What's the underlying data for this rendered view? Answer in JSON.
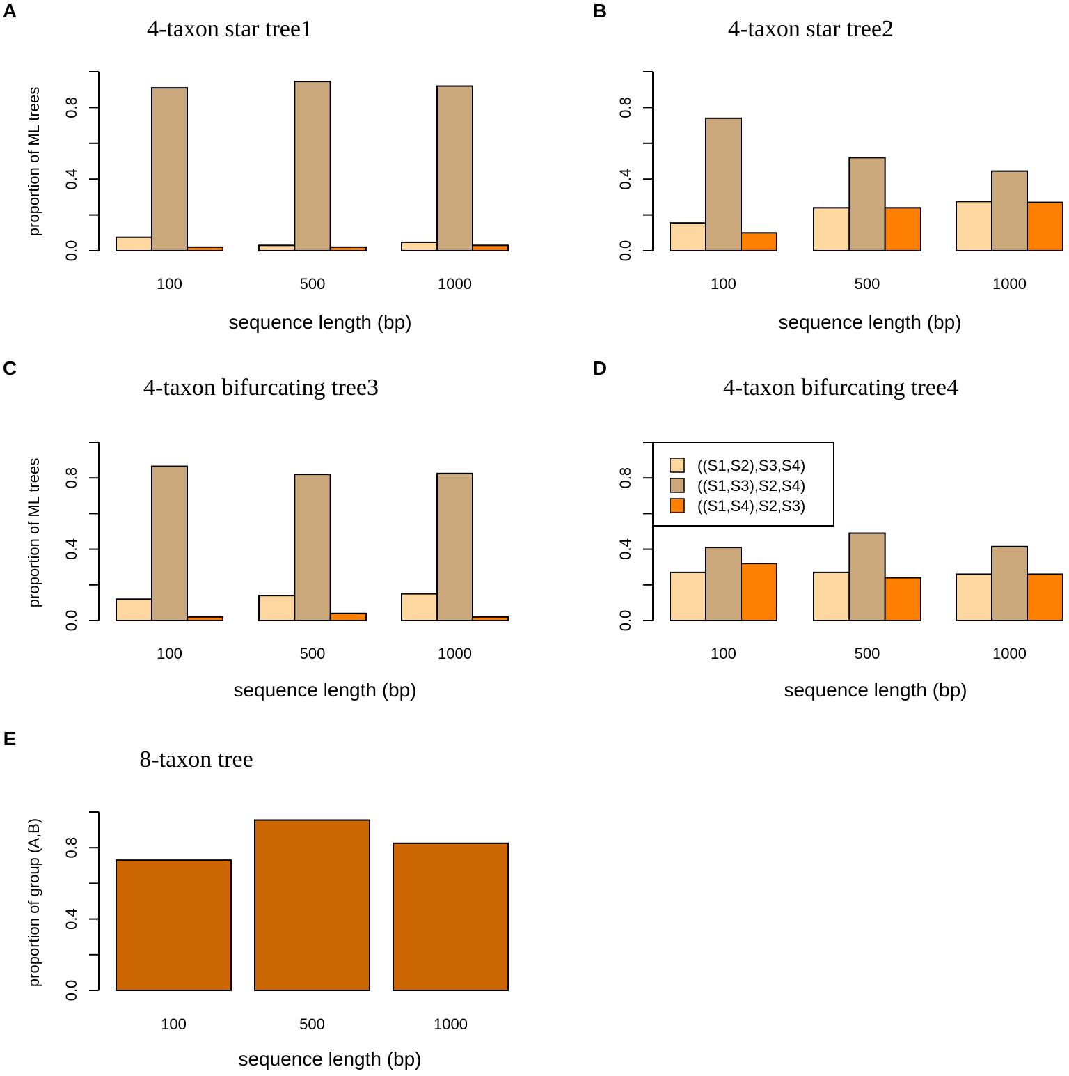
{
  "colors": {
    "tree1": "#FED6A0",
    "tree2": "#CBA87B",
    "tree3": "#FF7F00",
    "group": "#CC6600",
    "stroke": "#000000"
  },
  "legend": {
    "entries": [
      "((S1,S2),S3,S4)",
      "((S1,S3),S2,S4)",
      "((S1,S4),S2,S3)"
    ]
  },
  "chart_data": [
    {
      "panel": "A",
      "type": "bar",
      "title": "4-taxon star tree1",
      "xlabel": "sequence length (bp)",
      "ylabel": "proportion of ML trees",
      "categories": [
        "100",
        "500",
        "1000"
      ],
      "yticks": [
        "0.0",
        "0.4",
        "0.8"
      ],
      "ylim": [
        0,
        1
      ],
      "series": [
        {
          "name": "((S1,S2),S3,S4)",
          "values": [
            0.075,
            0.03,
            0.047
          ]
        },
        {
          "name": "((S1,S3),S2,S4)",
          "values": [
            0.91,
            0.945,
            0.92
          ]
        },
        {
          "name": "((S1,S4),S2,S3)",
          "values": [
            0.02,
            0.02,
            0.03
          ]
        }
      ]
    },
    {
      "panel": "B",
      "type": "bar",
      "title": "4-taxon star tree2",
      "xlabel": "sequence length (bp)",
      "ylabel": "",
      "categories": [
        "100",
        "500",
        "1000"
      ],
      "yticks": [
        "0.0",
        "0.4",
        "0.8"
      ],
      "ylim": [
        0,
        1
      ],
      "series": [
        {
          "name": "((S1,S2),S3,S4)",
          "values": [
            0.155,
            0.24,
            0.275
          ]
        },
        {
          "name": "((S1,S3),S2,S4)",
          "values": [
            0.74,
            0.52,
            0.445
          ]
        },
        {
          "name": "((S1,S4),S2,S3)",
          "values": [
            0.1,
            0.24,
            0.27
          ]
        }
      ]
    },
    {
      "panel": "C",
      "type": "bar",
      "title": "4-taxon bifurcating tree3",
      "xlabel": "sequence length (bp)",
      "ylabel": "proportion of ML trees",
      "categories": [
        "100",
        "500",
        "1000"
      ],
      "yticks": [
        "0.0",
        "0.4",
        "0.8"
      ],
      "ylim": [
        0,
        1
      ],
      "series": [
        {
          "name": "((S1,S2),S3,S4)",
          "values": [
            0.12,
            0.14,
            0.15
          ]
        },
        {
          "name": "((S1,S3),S2,S4)",
          "values": [
            0.865,
            0.82,
            0.825
          ]
        },
        {
          "name": "((S1,S4),S2,S3)",
          "values": [
            0.02,
            0.04,
            0.02
          ]
        }
      ]
    },
    {
      "panel": "D",
      "type": "bar",
      "title": "4-taxon bifurcating tree4",
      "xlabel": "sequence length (bp)",
      "ylabel": "",
      "categories": [
        "100",
        "500",
        "1000"
      ],
      "yticks": [
        "0.0",
        "0.4",
        "0.8"
      ],
      "ylim": [
        0,
        1
      ],
      "legend": "top-left",
      "series": [
        {
          "name": "((S1,S2),S3,S4)",
          "values": [
            0.27,
            0.27,
            0.26
          ]
        },
        {
          "name": "((S1,S3),S2,S4)",
          "values": [
            0.41,
            0.49,
            0.415
          ]
        },
        {
          "name": "((S1,S4),S2,S3)",
          "values": [
            0.32,
            0.24,
            0.26
          ]
        }
      ]
    },
    {
      "panel": "E",
      "type": "bar",
      "title": "8-taxon tree",
      "xlabel": "sequence length (bp)",
      "ylabel": "proportion of group (A,B)",
      "categories": [
        "100",
        "500",
        "1000"
      ],
      "yticks": [
        "0.0",
        "0.4",
        "0.8"
      ],
      "ylim": [
        0,
        1
      ],
      "series": [
        {
          "name": "(A,B)",
          "values": [
            0.73,
            0.955,
            0.825
          ]
        }
      ]
    }
  ]
}
